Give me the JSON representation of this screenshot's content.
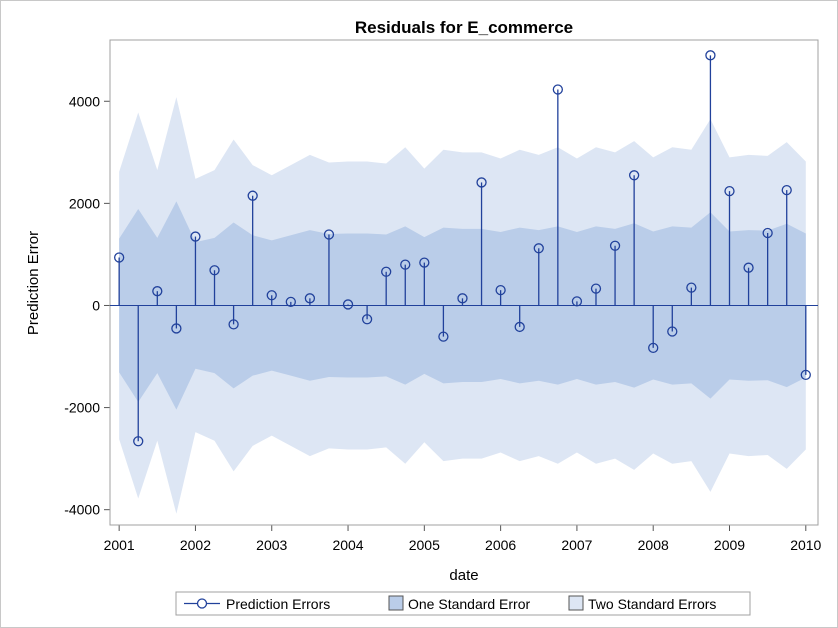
{
  "chart_data": {
    "type": "residual",
    "title": "Residuals for E_commerce",
    "x_label": "date",
    "y_label": "Prediction Error",
    "x": [
      2001,
      2001.25,
      2001.5,
      2001.75,
      2002,
      2002.25,
      2002.5,
      2002.75,
      2003,
      2003.25,
      2003.5,
      2003.75,
      2004,
      2004.25,
      2004.5,
      2004.75,
      2005,
      2005.25,
      2005.5,
      2005.75,
      2006,
      2006.25,
      2006.5,
      2006.75,
      2007,
      2007.25,
      2007.5,
      2007.75,
      2008,
      2008.25,
      2008.5,
      2008.75,
      2009,
      2009.25,
      2009.5,
      2009.75,
      2010
    ],
    "series": [
      {
        "name": "Prediction Errors",
        "color": "#21419b",
        "values": [
          940,
          -2660,
          280,
          -450,
          1350,
          690,
          -370,
          2150,
          200,
          70,
          140,
          1390,
          20,
          -270,
          660,
          800,
          840,
          -610,
          140,
          2410,
          300,
          -420,
          1120,
          4230,
          80,
          330,
          1170,
          2550,
          -830,
          -510,
          350,
          4900,
          2240,
          740,
          1420,
          2260,
          -1360
        ]
      },
      {
        "name": "One Standard Error",
        "color": "#bacde9",
        "values": [
          1310,
          1890,
          1325,
          2040,
          1240,
          1325,
          1625,
          1375,
          1275,
          1375,
          1475,
          1400,
          1410,
          1410,
          1390,
          1550,
          1340,
          1525,
          1500,
          1500,
          1440,
          1525,
          1475,
          1550,
          1440,
          1550,
          1500,
          1610,
          1450,
          1550,
          1525,
          1825,
          1450,
          1475,
          1465,
          1600,
          1410
        ]
      },
      {
        "name": "Two Standard Errors",
        "color": "#dde6f4",
        "values": [
          2620,
          3780,
          2650,
          4080,
          2480,
          2650,
          3250,
          2750,
          2550,
          2750,
          2950,
          2800,
          2820,
          2820,
          2780,
          3100,
          2680,
          3050,
          3000,
          3000,
          2880,
          3050,
          2950,
          3100,
          2880,
          3100,
          3000,
          3220,
          2900,
          3100,
          3050,
          3650,
          2900,
          2950,
          2930,
          3200,
          2820
        ]
      }
    ],
    "xlim": [
      2000.88,
      2010.16
    ],
    "xticks": [
      2001,
      2002,
      2003,
      2004,
      2005,
      2006,
      2007,
      2008,
      2009,
      2010
    ],
    "ylim": [
      -4300,
      5200
    ],
    "yticks": [
      -4000,
      -2000,
      0,
      2000,
      4000
    ],
    "legend": "bottom"
  }
}
